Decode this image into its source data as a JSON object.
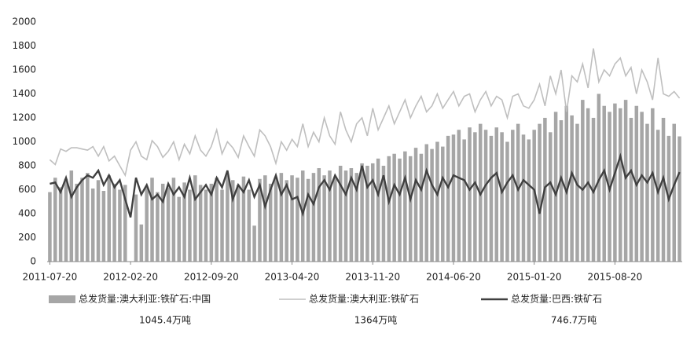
{
  "chart_data": {
    "type": "bar_line",
    "categories": [
      "2011-07-20",
      null,
      null,
      null,
      null,
      null,
      null,
      null,
      null,
      null,
      null,
      null,
      null,
      null,
      null,
      "2012-02-20",
      null,
      null,
      null,
      null,
      null,
      null,
      null,
      null,
      null,
      null,
      null,
      null,
      null,
      null,
      "2012-09-20",
      null,
      null,
      null,
      null,
      null,
      null,
      null,
      null,
      null,
      null,
      null,
      null,
      null,
      null,
      "2013-04-20",
      null,
      null,
      null,
      null,
      null,
      null,
      null,
      null,
      null,
      null,
      null,
      null,
      null,
      null,
      "2013-11-20",
      null,
      null,
      null,
      null,
      null,
      null,
      null,
      null,
      null,
      null,
      null,
      null,
      null,
      null,
      "2014-06-20",
      null,
      null,
      null,
      null,
      null,
      null,
      null,
      null,
      null,
      null,
      null,
      null,
      null,
      null,
      "2015-01-20",
      null,
      null,
      null,
      null,
      null,
      null,
      null,
      null,
      null,
      null,
      null,
      null,
      null,
      null,
      "2015-08-20",
      null,
      null,
      null,
      null,
      null,
      null,
      null,
      null,
      null,
      null,
      null,
      null
    ],
    "series": [
      {
        "name": "总发货量:澳大利亚:铁矿石:中国",
        "kind": "bar",
        "color": "#a6a6a6",
        "values": [
          580,
          700,
          620,
          690,
          760,
          650,
          700,
          740,
          610,
          680,
          590,
          720,
          650,
          600,
          640,
          0,
          560,
          310,
          620,
          700,
          580,
          650,
          620,
          700,
          540,
          660,
          600,
          720,
          640,
          600,
          650,
          700,
          600,
          720,
          680,
          640,
          710,
          600,
          300,
          690,
          720,
          650,
          700,
          740,
          680,
          720,
          700,
          760,
          690,
          740,
          780,
          720,
          760,
          700,
          800,
          760,
          780,
          740,
          820,
          800,
          820,
          860,
          800,
          880,
          900,
          860,
          920,
          880,
          950,
          900,
          980,
          940,
          1000,
          960,
          1050,
          1060,
          1100,
          1020,
          1120,
          1080,
          1150,
          1100,
          1050,
          1120,
          1080,
          1000,
          1100,
          1150,
          1060,
          1020,
          1100,
          1150,
          1200,
          1080,
          1250,
          1180,
          1300,
          1220,
          1150,
          1350,
          1280,
          1200,
          1400,
          1300,
          1250,
          1320,
          1280,
          1350,
          1200,
          1300,
          1250,
          1150,
          1280,
          1100,
          1200,
          1050,
          1150,
          1045.4
        ]
      },
      {
        "name": "总发货量:澳大利亚:铁矿石",
        "kind": "line",
        "color": "#bfbfbf",
        "values": [
          850,
          810,
          940,
          920,
          950,
          950,
          940,
          930,
          960,
          880,
          960,
          840,
          880,
          800,
          720,
          930,
          1000,
          880,
          850,
          1010,
          960,
          870,
          920,
          1000,
          850,
          980,
          900,
          1050,
          930,
          880,
          960,
          1100,
          900,
          1000,
          950,
          870,
          1050,
          960,
          880,
          1100,
          1050,
          960,
          820,
          1000,
          930,
          1020,
          960,
          1150,
          960,
          1080,
          1000,
          1200,
          1050,
          980,
          1250,
          1100,
          1000,
          1150,
          1200,
          1050,
          1280,
          1100,
          1200,
          1300,
          1150,
          1250,
          1350,
          1200,
          1300,
          1380,
          1250,
          1300,
          1400,
          1280,
          1350,
          1420,
          1300,
          1380,
          1400,
          1250,
          1350,
          1420,
          1300,
          1380,
          1350,
          1200,
          1380,
          1400,
          1300,
          1280,
          1350,
          1480,
          1300,
          1550,
          1400,
          1600,
          1250,
          1550,
          1500,
          1650,
          1450,
          1780,
          1500,
          1600,
          1550,
          1650,
          1700,
          1550,
          1620,
          1400,
          1600,
          1500,
          1350,
          1700,
          1400,
          1380,
          1420,
          1364
        ]
      },
      {
        "name": "总发货量:巴西:铁矿石",
        "kind": "line",
        "color": "#404040",
        "values": [
          650,
          660,
          580,
          700,
          540,
          620,
          680,
          720,
          700,
          760,
          640,
          720,
          620,
          680,
          520,
          370,
          700,
          560,
          640,
          520,
          560,
          500,
          650,
          560,
          620,
          540,
          700,
          520,
          580,
          640,
          560,
          700,
          620,
          760,
          520,
          640,
          580,
          680,
          540,
          640,
          460,
          600,
          720,
          560,
          640,
          520,
          540,
          400,
          560,
          480,
          620,
          680,
          600,
          720,
          640,
          560,
          700,
          600,
          800,
          620,
          680,
          560,
          720,
          500,
          640,
          560,
          700,
          520,
          680,
          600,
          760,
          640,
          560,
          700,
          620,
          720,
          700,
          680,
          600,
          660,
          560,
          640,
          700,
          740,
          580,
          660,
          720,
          600,
          680,
          640,
          600,
          400,
          620,
          660,
          560,
          700,
          580,
          740,
          640,
          600,
          660,
          580,
          680,
          760,
          600,
          740,
          880,
          700,
          760,
          640,
          720,
          660,
          740,
          580,
          700,
          520,
          640,
          746.7
        ]
      }
    ],
    "legend_notes": [
      "1045.4万吨",
      "1364万吨",
      "746.7万吨"
    ],
    "ylim": [
      0,
      2000
    ],
    "yticks": [
      0,
      200,
      400,
      600,
      800,
      1000,
      1200,
      1400,
      1600,
      1800,
      2000
    ],
    "grid": false
  }
}
